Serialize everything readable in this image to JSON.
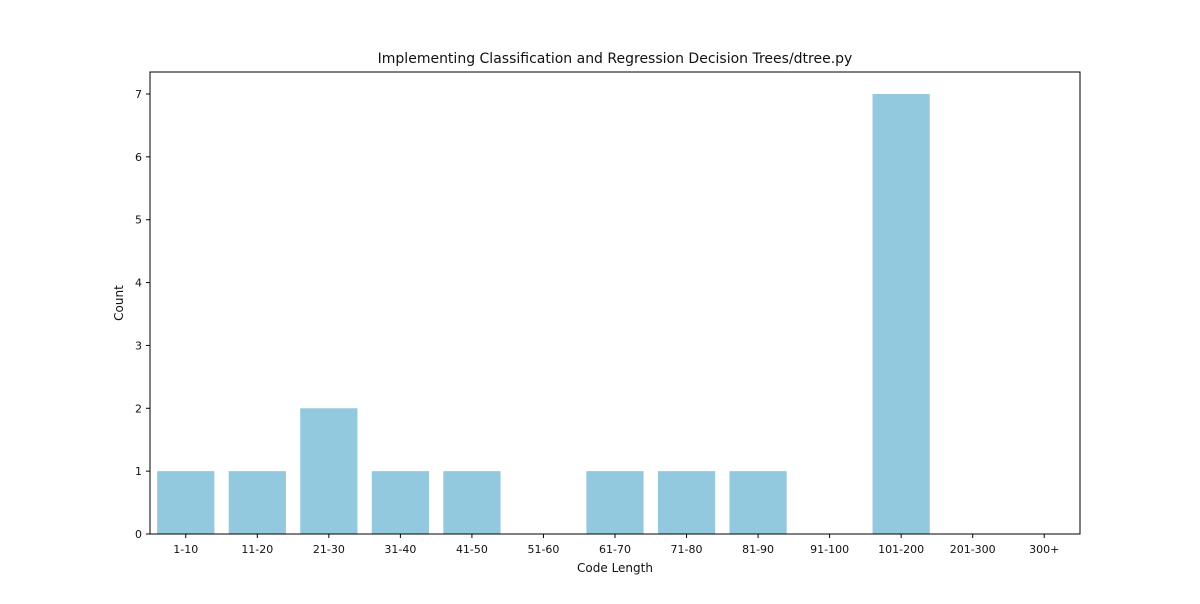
{
  "chart_data": {
    "type": "bar",
    "title": "Implementing Classification and Regression Decision Trees/dtree.py",
    "xlabel": "Code Length",
    "ylabel": "Count",
    "categories": [
      "1-10",
      "11-20",
      "21-30",
      "31-40",
      "41-50",
      "51-60",
      "61-70",
      "71-80",
      "81-90",
      "91-100",
      "101-200",
      "201-300",
      "300+"
    ],
    "values": [
      1,
      1,
      2,
      1,
      1,
      0,
      1,
      1,
      1,
      0,
      7,
      0,
      0
    ],
    "ylim": [
      0,
      7.35
    ],
    "yticks": [
      0,
      1,
      2,
      3,
      4,
      5,
      6,
      7
    ],
    "bar_color": "#92c9de",
    "grid": false,
    "legend": "none"
  }
}
